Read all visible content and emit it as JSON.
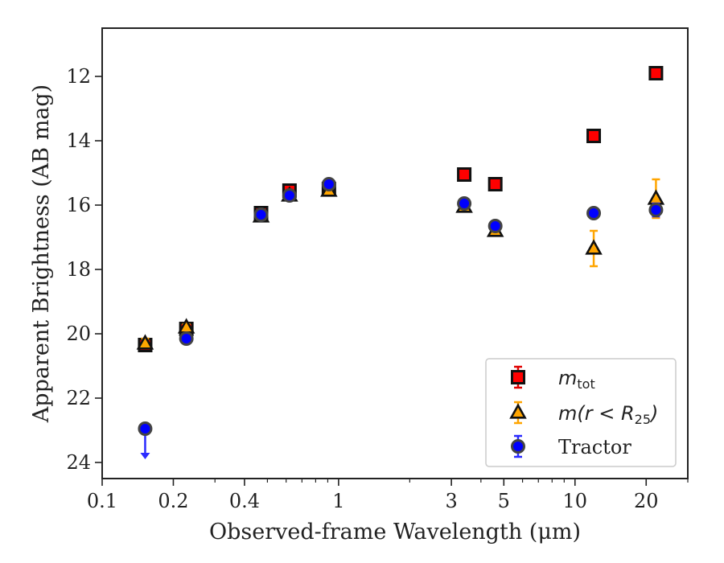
{
  "chart_data": {
    "type": "scatter",
    "xscale": "log",
    "yinverted": true,
    "xlim": [
      0.1,
      30
    ],
    "ylim": [
      24.5,
      10.5
    ],
    "xlabel": "Observed-frame Wavelength (μm)",
    "ylabel": "Apparent Brightness (AB mag)",
    "xticks": [
      {
        "value": 0.1,
        "label": "0.1"
      },
      {
        "value": 0.2,
        "label": "0.2"
      },
      {
        "value": 0.4,
        "label": "0.4"
      },
      {
        "value": 1,
        "label": "1"
      },
      {
        "value": 3,
        "label": "3"
      },
      {
        "value": 5,
        "label": "5"
      },
      {
        "value": 10,
        "label": "10"
      },
      {
        "value": 20,
        "label": "20"
      }
    ],
    "yticks": [
      {
        "value": 12,
        "label": "12"
      },
      {
        "value": 14,
        "label": "14"
      },
      {
        "value": 16,
        "label": "16"
      },
      {
        "value": 18,
        "label": "18"
      },
      {
        "value": 20,
        "label": "20"
      },
      {
        "value": 22,
        "label": "22"
      },
      {
        "value": 24,
        "label": "24"
      }
    ],
    "legend_position": "lower-right",
    "series": [
      {
        "name": "m_tot",
        "legend_main": "m",
        "legend_sub": "tot",
        "marker": "square",
        "color": "#ff0000",
        "errcolor": "#e00000",
        "points": [
          {
            "x": 0.152,
            "y": 20.35,
            "err": 0.05
          },
          {
            "x": 0.227,
            "y": 19.85,
            "err": 0.05
          },
          {
            "x": 0.47,
            "y": 16.25,
            "err": 0.05
          },
          {
            "x": 0.62,
            "y": 15.55,
            "err": 0.05
          },
          {
            "x": 0.91,
            "y": 15.5,
            "err": 0.05
          },
          {
            "x": 3.4,
            "y": 15.05,
            "err": 0.03
          },
          {
            "x": 4.6,
            "y": 15.35,
            "err": 0.03
          },
          {
            "x": 12.0,
            "y": 13.85,
            "err": 0.03
          },
          {
            "x": 22.0,
            "y": 11.9,
            "err": 0.03
          }
        ]
      },
      {
        "name": "m(r<R_25)",
        "legend_main": "m(r < R",
        "legend_sub": "25",
        "legend_end": ")",
        "marker": "triangle",
        "color": "#ffa500",
        "errcolor": "#ffa500",
        "points": [
          {
            "x": 0.152,
            "y": 20.3,
            "err": 0.15
          },
          {
            "x": 0.227,
            "y": 19.8,
            "err": 0.1
          },
          {
            "x": 0.47,
            "y": 16.35,
            "err": 0.05
          },
          {
            "x": 0.62,
            "y": 15.7,
            "err": 0.05
          },
          {
            "x": 0.91,
            "y": 15.55,
            "err": 0.05
          },
          {
            "x": 3.4,
            "y": 16.05,
            "err": 0.05
          },
          {
            "x": 4.6,
            "y": 16.8,
            "err": 0.08
          },
          {
            "x": 12.0,
            "y": 17.35,
            "err": 0.55
          },
          {
            "x": 22.0,
            "y": 15.8,
            "err": 0.6
          }
        ]
      },
      {
        "name": "Tractor",
        "legend_main": "Tractor",
        "marker": "circle",
        "color": "#0000ff",
        "errcolor": "#2a2aff",
        "points": [
          {
            "x": 0.152,
            "y": 22.95,
            "upper_limit": true,
            "arrow_to": 23.9
          },
          {
            "x": 0.227,
            "y": 20.15,
            "err": 0.05
          },
          {
            "x": 0.47,
            "y": 16.3,
            "err": 0.05
          },
          {
            "x": 0.62,
            "y": 15.7,
            "err": 0.05
          },
          {
            "x": 0.91,
            "y": 15.35,
            "err": 0.05
          },
          {
            "x": 3.4,
            "y": 15.95,
            "err": 0.05
          },
          {
            "x": 4.6,
            "y": 16.65,
            "err": 0.05
          },
          {
            "x": 12.0,
            "y": 16.25,
            "err": 0.05
          },
          {
            "x": 22.0,
            "y": 16.15,
            "err": 0.2
          }
        ]
      }
    ]
  }
}
